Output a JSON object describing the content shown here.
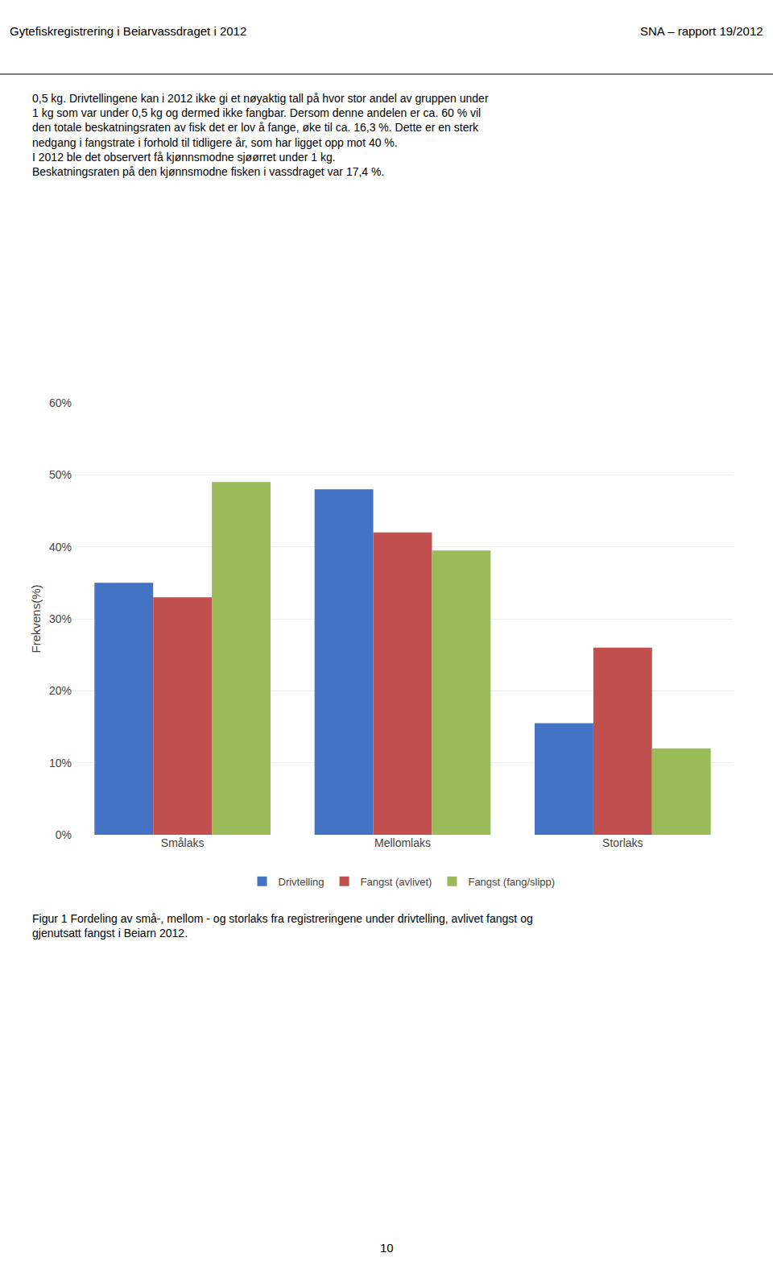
{
  "chart_data": {
    "type": "bar",
    "categories": [
      "Smålaks",
      "Mellomlaks",
      "Storlaks"
    ],
    "series": [
      {
        "name": "Drivtelling",
        "color": "#4472C4",
        "values": [
          0.35,
          0.48,
          0.155
        ]
      },
      {
        "name": "Fangst (avlivet)",
        "color": "#C0504D",
        "values": [
          0.33,
          0.42,
          0.26
        ]
      },
      {
        "name": "Fangst (fang/slipp)",
        "color": "#9BBB59",
        "values": [
          0.49,
          0.395,
          0.12
        ]
      }
    ],
    "ylabel": "Frekvens(%)",
    "ylim": [
      0,
      0.6
    ],
    "yticks": [
      {
        "value": 0,
        "label": "0%"
      },
      {
        "value": 0.1,
        "label": "10%"
      },
      {
        "value": 0.2,
        "label": "20%"
      },
      {
        "value": 0.3,
        "label": "30%"
      },
      {
        "value": 0.4,
        "label": "40%"
      },
      {
        "value": 0.5,
        "label": "50%"
      },
      {
        "value": 0.6,
        "label": "60%"
      }
    ],
    "grid": true,
    "legend": "bottom",
    "annotations": [
      "Gytefiskregistrering i Beiarvassdraget i 2012",
      "SNA – rapport 19/2012",
      "0,5 kg. Drivtellingene kan i 2012 ikke gi et nøyaktig tall på hvor stor andel av gruppen under\n1 kg som var under 0,5 kg og dermed ikke fangbar. Dersom denne andelen er ca. 60 % vil\nden totale beskatningsraten av fisk det er lov å fange, øke til ca. 16,3 %. Dette er en sterk\nnedgang i fangstrate i forhold til tidligere år, som har ligget opp mot 40 %.\nI 2012 ble det observert få kjønnsmodne sjøørret under 1 kg.\nBeskatningsraten på den kjønnsmodne fisken i vassdraget var 17,4 %.",
      "Figur 1 Fordeling av små-, mellom - og storlaks fra registreringene under drivtelling, avlivet fangst og\ngjenutsatt fangst i Beiarn 2012.",
      "10"
    ]
  }
}
